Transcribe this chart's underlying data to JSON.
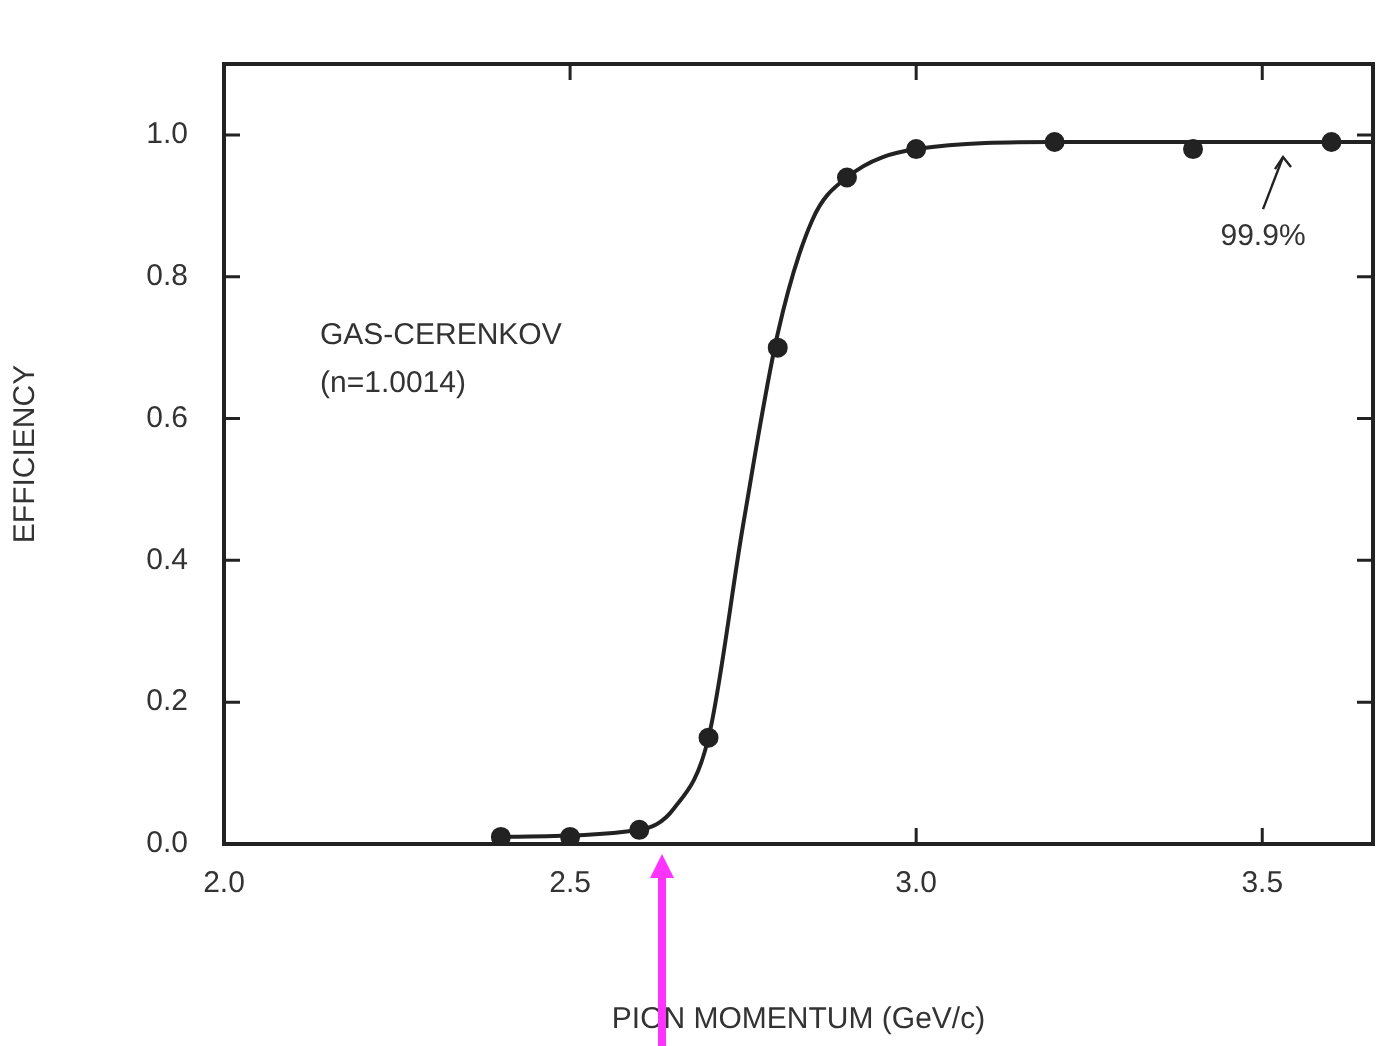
{
  "chart_data": {
    "type": "scatter",
    "xlabel": "PION MOMENTUM (GeV/c)",
    "ylabel": "EFFICIENCY",
    "annotations": [
      "GAS-CERENKOV",
      "(n=1.0014)",
      {
        "text": "99.9%",
        "x": 3.53,
        "y": 0.98
      }
    ],
    "series": [
      {
        "color": "#222222",
        "marker": "circle",
        "x": [
          2.4,
          2.5,
          2.6,
          2.7,
          2.8,
          2.9,
          3.0,
          3.2,
          3.4,
          3.6
        ],
        "values": [
          0.01,
          0.01,
          0.02,
          0.15,
          0.7,
          0.94,
          0.98,
          0.99,
          0.98,
          0.99
        ]
      },
      {
        "type": "line",
        "color": "#222222",
        "marker": "none",
        "x": [
          2.4,
          2.6,
          2.65,
          2.7,
          2.75,
          2.8,
          2.85,
          2.9,
          3.0,
          3.2,
          3.66
        ],
        "values": [
          0.01,
          0.02,
          0.05,
          0.15,
          0.45,
          0.72,
          0.88,
          0.94,
          0.98,
          0.99,
          0.99
        ]
      }
    ],
    "xlim": [
      2.0,
      3.66
    ],
    "xticks": [
      {
        "value": 2.0,
        "label": "2.0"
      },
      2.5,
      {
        "value": 3.0,
        "label": "3.0"
      },
      3.5
    ],
    "ylim": [
      0,
      1.1
    ],
    "yticks": [
      {
        "value": 0,
        "label": "0.0"
      },
      0.2,
      0.4,
      0.6,
      0.8,
      {
        "value": 1,
        "label": "1.0"
      }
    ],
    "grid": false,
    "legend": false
  }
}
